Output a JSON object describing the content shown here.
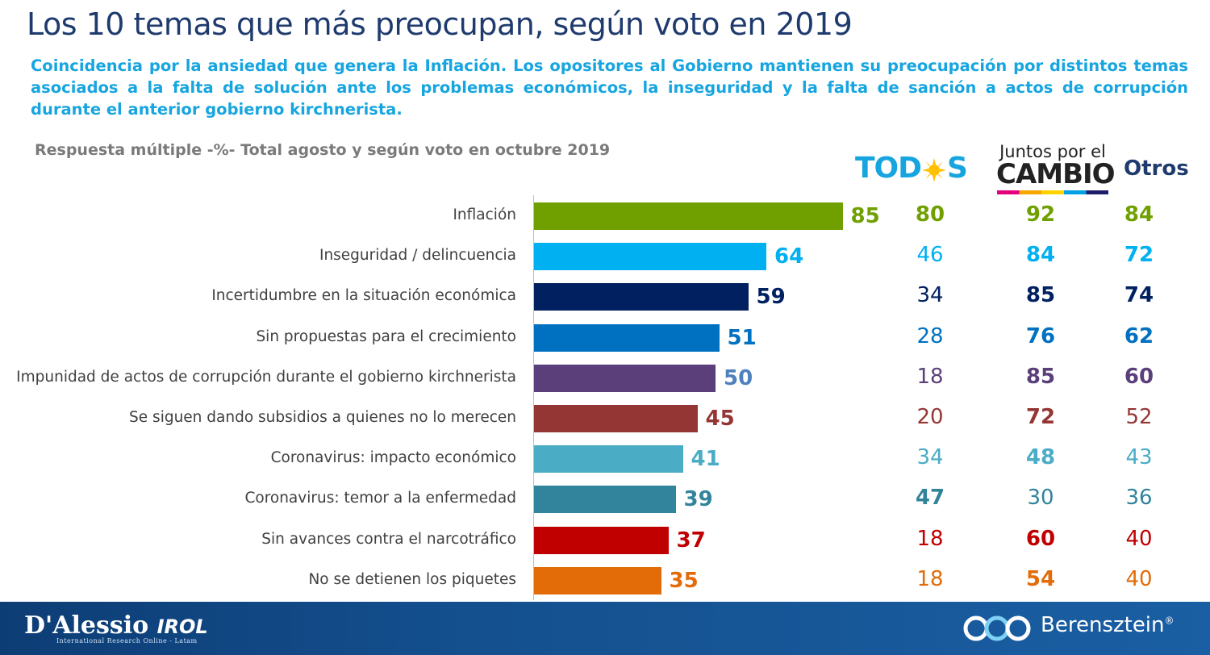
{
  "title": "Los 10 temas que más preocupan, según voto en 2019",
  "subtitle": "Coincidencia por la ansiedad que genera la Inflación. Los opositores al Gobierno mantienen su preocupación por distintos temas asociados a la falta de solución ante los problemas económicos, la inseguridad y la falta de sanción a actos de corrupción durante el anterior gobierno kirchnerista.",
  "note": "Respuesta múltiple -%- Total agosto y según voto en octubre 2019",
  "headers": {
    "todos_a": "TOD",
    "todos_b": "S",
    "juntos_line1": "Juntos por el",
    "juntos_line2": "CAMBIO",
    "otros": "Otros"
  },
  "footer": {
    "left_brand": "D'Alessio",
    "left_brand2": "IROL",
    "left_sub": "International Research Online - Latam",
    "right_brand": "Berensztein",
    "right_mark": "®"
  },
  "colors": {
    "title": "#1f3b6e",
    "subtitle": "#17a5e0",
    "rows": [
      "#70a000",
      "#00b0f0",
      "#002060",
      "#0070c0",
      "#5b3f7a",
      "#943634",
      "#4bacc6",
      "#31849b",
      "#c00000",
      "#e36c09"
    ]
  },
  "chart_data": {
    "type": "bar",
    "orientation": "horizontal",
    "xlim": [
      0,
      100
    ],
    "categories": [
      "Inflación",
      "Inseguridad / delincuencia",
      "Incertidumbre en la situación económica",
      "Sin propuestas para el crecimiento",
      "Impunidad de actos de corrupción durante el gobierno kirchnerista",
      "Se siguen dando subsidios a quienes no lo merecen",
      "Coronavirus: impacto económico",
      "Coronavirus: temor a la enfermedad",
      "Sin avances contra el narcotráfico",
      "No se detienen los piquetes"
    ],
    "values": [
      85,
      64,
      59,
      51,
      50,
      45,
      41,
      39,
      37,
      35
    ],
    "value_label_colors": [
      "#70a000",
      "#00b0f0",
      "#002060",
      "#0070c0",
      "#4f81bd",
      "#943634",
      "#4bacc6",
      "#31849b",
      "#c00000",
      "#e36c09"
    ],
    "table": {
      "columns": [
        "Todos",
        "Juntos por el Cambio",
        "Otros"
      ],
      "rows": [
        [
          80,
          92,
          84
        ],
        [
          46,
          84,
          72
        ],
        [
          34,
          85,
          74
        ],
        [
          28,
          76,
          62
        ],
        [
          18,
          85,
          60
        ],
        [
          20,
          72,
          52
        ],
        [
          34,
          48,
          43
        ],
        [
          47,
          30,
          36
        ],
        [
          18,
          60,
          40
        ],
        [
          18,
          54,
          40
        ]
      ],
      "bold": [
        [
          true,
          true,
          true
        ],
        [
          false,
          true,
          true
        ],
        [
          false,
          true,
          true
        ],
        [
          false,
          true,
          true
        ],
        [
          false,
          true,
          true
        ],
        [
          false,
          true,
          false
        ],
        [
          false,
          true,
          false
        ],
        [
          true,
          false,
          false
        ],
        [
          false,
          true,
          false
        ],
        [
          false,
          true,
          false
        ]
      ]
    }
  }
}
